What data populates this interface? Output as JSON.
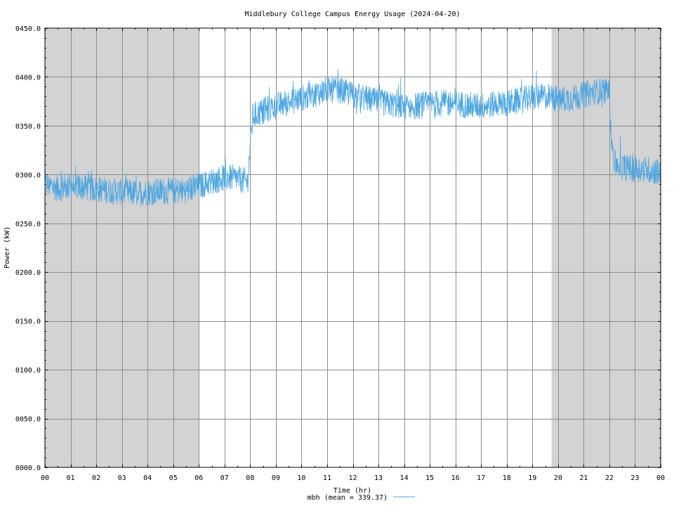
{
  "chart_data": {
    "type": "line",
    "title": "Middlebury College Campus Energy Usage (2024-04-20)",
    "xlabel": "Time (hr)",
    "ylabel": "Power (kW)",
    "xlim": [
      0,
      24
    ],
    "ylim": [
      0,
      450
    ],
    "x_ticks": [
      0,
      1,
      2,
      3,
      4,
      5,
      6,
      7,
      8,
      9,
      10,
      11,
      12,
      13,
      14,
      15,
      16,
      17,
      18,
      19,
      20,
      21,
      22,
      23,
      24
    ],
    "x_tick_labels": [
      "00",
      "01",
      "02",
      "03",
      "04",
      "05",
      "06",
      "07",
      "08",
      "09",
      "10",
      "11",
      "12",
      "13",
      "14",
      "15",
      "16",
      "17",
      "18",
      "19",
      "20",
      "21",
      "22",
      "23",
      "00"
    ],
    "y_ticks": [
      0,
      50,
      100,
      150,
      200,
      250,
      300,
      350,
      400,
      450
    ],
    "y_tick_labels": [
      "0000.0",
      "0050.0",
      "0100.0",
      "0150.0",
      "0200.0",
      "0250.0",
      "0300.0",
      "0350.0",
      "0400.0",
      "0450.0"
    ],
    "grid": true,
    "shaded_ranges": [
      [
        0,
        6
      ],
      [
        19.75,
        24
      ]
    ],
    "shade_color": "#d3d3d3",
    "series": [
      {
        "name": "mbh",
        "legend_label": "mbh (mean = 339.37)",
        "color": "#4da6e0",
        "noise_amplitude": 14,
        "x": [
          0,
          0.5,
          1,
          1.5,
          2,
          2.5,
          3,
          3.5,
          4,
          4.5,
          5,
          5.5,
          6,
          6.5,
          7,
          7.5,
          7.9,
          8.0,
          8.1,
          8.5,
          9,
          9.5,
          10,
          10.5,
          11,
          11.5,
          12,
          12.5,
          13,
          13.5,
          14,
          14.5,
          15,
          15.5,
          16,
          16.5,
          17,
          17.5,
          18,
          18.5,
          19,
          19.5,
          20,
          20.5,
          21,
          21.5,
          22,
          22.05,
          22.2,
          22.5,
          23,
          23.5,
          24
        ],
        "y": [
          290,
          286,
          288,
          287,
          285,
          284,
          282,
          281,
          282,
          283,
          283,
          284,
          288,
          293,
          297,
          296,
          292,
          330,
          360,
          365,
          370,
          374,
          378,
          382,
          387,
          386,
          382,
          378,
          374,
          372,
          370,
          370,
          372,
          373,
          373,
          371,
          370,
          372,
          373,
          375,
          379,
          380,
          377,
          378,
          382,
          385,
          386,
          345,
          312,
          308,
          306,
          305,
          302
        ]
      }
    ],
    "legend_position": "bottom-center"
  }
}
